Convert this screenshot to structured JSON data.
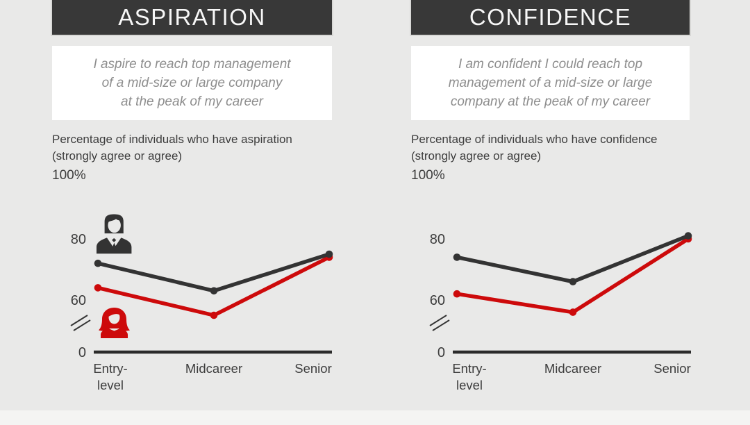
{
  "page": {
    "background": "#e9e9e8",
    "footer_strip_color": "#f4f4f3"
  },
  "colors": {
    "men": "#333333",
    "women": "#cd0a0b",
    "header_bg": "#383838",
    "header_text": "#f7f7f7",
    "quote_text": "#8d8d8d",
    "body_text": "#3d3d3d",
    "axis": "#2b2b2b"
  },
  "panels": [
    {
      "id": "aspiration",
      "header": "ASPIRATION",
      "quote": "I aspire to reach top management\nof a mid-size or large company\nat the peak of my career",
      "subtitle": "Percentage of individuals who have aspiration\n(strongly agree or agree)",
      "axis_top_label": "100%",
      "show_icons": true
    },
    {
      "id": "confidence",
      "header": "CONFIDENCE",
      "quote": "I am confident I could reach top\nmanagement of a mid-size or large\ncompany at the peak of my career",
      "subtitle": "Percentage of individuals who have confidence\n(strongly agree or agree)",
      "axis_top_label": "100%",
      "show_icons": false
    }
  ],
  "chart_data": [
    {
      "type": "line",
      "title": "Aspiration",
      "ylabel": "Percentage of individuals who have aspiration (strongly agree or agree)",
      "categories": [
        "Entry-level",
        "Midcareer",
        "Senior"
      ],
      "tick_lines": [
        [
          "Entry-",
          "level"
        ],
        [
          "Midcareer"
        ],
        [
          "Senior"
        ]
      ],
      "yticks": [
        80,
        60,
        0
      ],
      "ylim": [
        0,
        100
      ],
      "axis_break": true,
      "grid": false,
      "legend": "pictogram icons: dark man bust = men, red woman bust = women (left chart only)",
      "series": [
        {
          "name": "Women",
          "color": "#cd0a0b",
          "icon": "woman-icon",
          "values": [
            64,
            55,
            74
          ]
        },
        {
          "name": "Men",
          "color": "#333333",
          "icon": "man-icon",
          "values": [
            72,
            63,
            75
          ]
        }
      ]
    },
    {
      "type": "line",
      "title": "Confidence",
      "ylabel": "Percentage of individuals who have confidence (strongly agree or agree)",
      "categories": [
        "Entry-level",
        "Midcareer",
        "Senior"
      ],
      "tick_lines": [
        [
          "Entry-",
          "level"
        ],
        [
          "Midcareer"
        ],
        [
          "Senior"
        ]
      ],
      "yticks": [
        80,
        60,
        0
      ],
      "ylim": [
        0,
        100
      ],
      "axis_break": true,
      "grid": false,
      "series": [
        {
          "name": "Women",
          "color": "#cd0a0b",
          "icon": "woman-icon",
          "values": [
            62,
            56,
            80
          ]
        },
        {
          "name": "Men",
          "color": "#333333",
          "icon": "man-icon",
          "values": [
            74,
            66,
            81
          ]
        }
      ]
    }
  ]
}
